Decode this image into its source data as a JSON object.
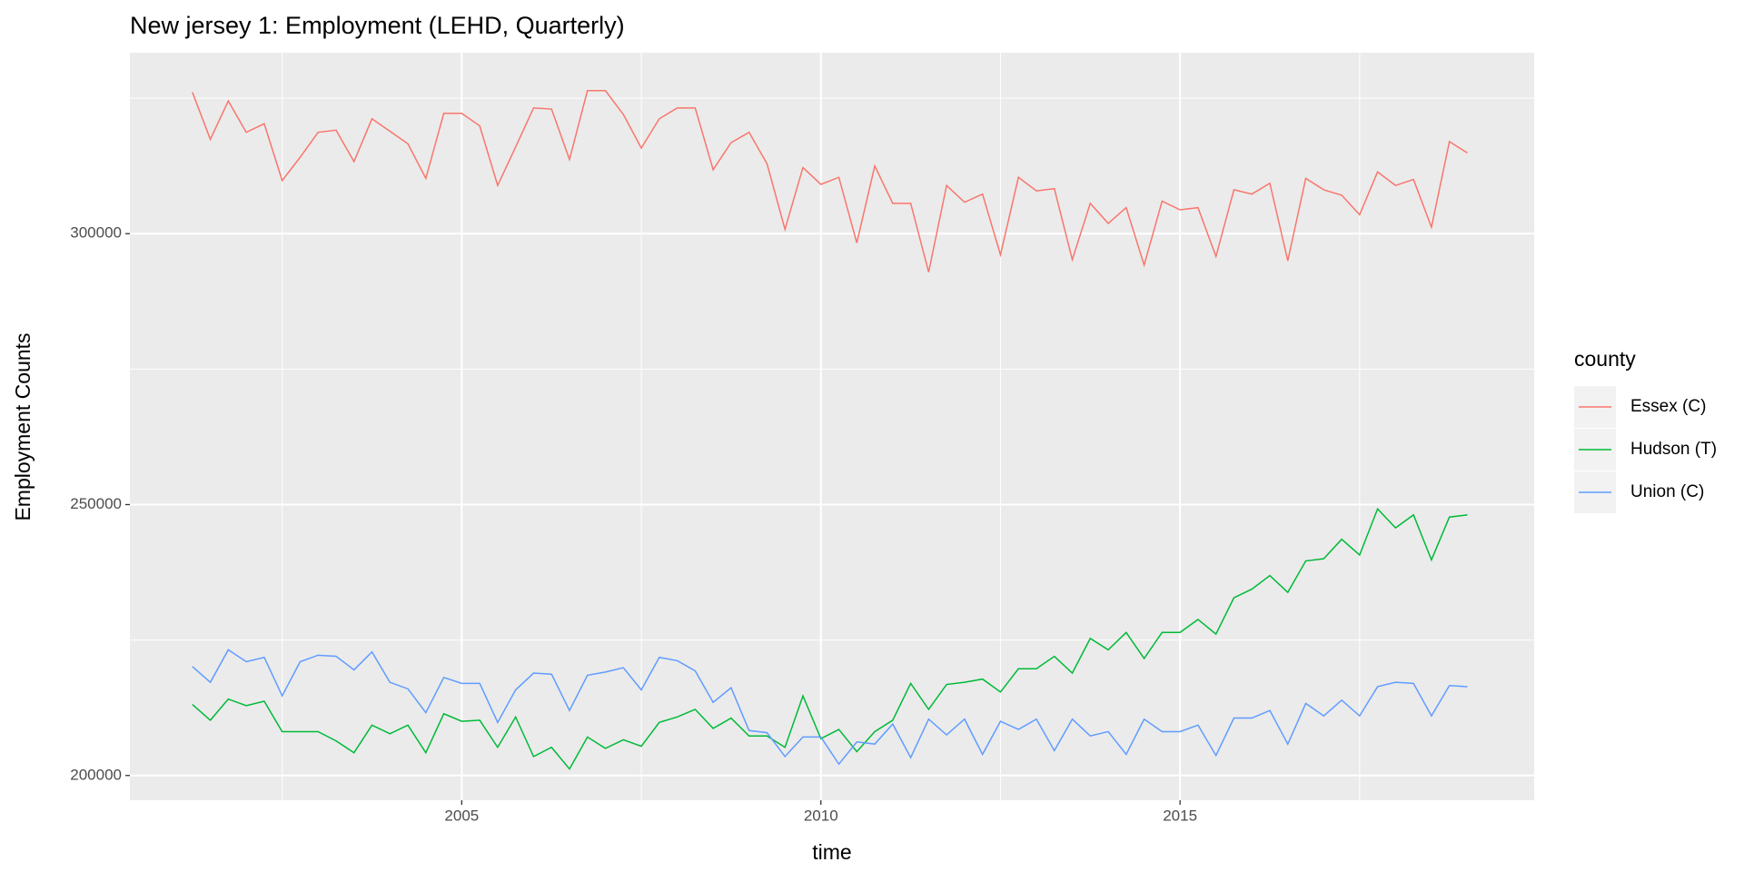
{
  "chart_data": {
    "type": "line",
    "title": "New jersey 1: Employment (LEHD, Quarterly)",
    "x_label": "time",
    "y_label": "Employment Counts",
    "legend_title": "county",
    "legend_position": "right",
    "grid": true,
    "x": [
      2001.25,
      2001.5,
      2001.75,
      2002,
      2002.25,
      2002.5,
      2002.75,
      2003,
      2003.25,
      2003.5,
      2003.75,
      2004,
      2004.25,
      2004.5,
      2004.75,
      2005,
      2005.25,
      2005.5,
      2005.75,
      2006,
      2006.25,
      2006.5,
      2006.75,
      2007,
      2007.25,
      2007.5,
      2007.75,
      2008,
      2008.25,
      2008.5,
      2008.75,
      2009,
      2009.25,
      2009.5,
      2009.75,
      2010,
      2010.25,
      2010.5,
      2010.75,
      2011,
      2011.25,
      2011.5,
      2011.75,
      2012,
      2012.25,
      2012.5,
      2012.75,
      2013,
      2013.25,
      2013.5,
      2013.75,
      2014,
      2014.25,
      2014.5,
      2014.75,
      2015,
      2015.25,
      2015.5,
      2015.75,
      2016,
      2016.25,
      2016.5,
      2016.75,
      2017,
      2017.25,
      2017.5,
      2017.75,
      2018,
      2018.25,
      2018.5,
      2018.75,
      2019
    ],
    "xlim": [
      2000.38,
      2019.93
    ],
    "xticks": [
      2005,
      2010,
      2015
    ],
    "ylim": [
      195435,
      333400
    ],
    "yticks": [
      200000,
      250000,
      300000
    ],
    "series": [
      {
        "name": "Essex (C)",
        "color": "#F8766D",
        "values": [
          326100,
          317400,
          324500,
          318700,
          320300,
          309800,
          314100,
          318700,
          319100,
          313300,
          321200,
          318900,
          316600,
          310200,
          322200,
          322200,
          319900,
          308900,
          316000,
          323200,
          323000,
          313700,
          326400,
          326400,
          322000,
          315800,
          321200,
          323200,
          323200,
          311800,
          316800,
          318700,
          312900,
          300800,
          312200,
          309100,
          310400,
          298300,
          312500,
          305600,
          305600,
          292900,
          308900,
          305800,
          307300,
          296100,
          310400,
          307900,
          308300,
          295200,
          305600,
          301900,
          304800,
          294200,
          306000,
          304400,
          304800,
          295800,
          308100,
          307300,
          309300,
          295000,
          310200,
          308100,
          307100,
          303500,
          311400,
          308900,
          310000,
          301200,
          317000,
          314900
        ]
      },
      {
        "name": "Hudson (T)",
        "color": "#00BA38",
        "values": [
          213100,
          210200,
          214100,
          212900,
          213700,
          208100,
          208100,
          208100,
          206400,
          204200,
          209300,
          207700,
          209300,
          204200,
          211400,
          210000,
          210200,
          205200,
          210800,
          203500,
          205200,
          201200,
          207100,
          205000,
          206600,
          205400,
          209800,
          210800,
          212200,
          208700,
          210600,
          207300,
          207300,
          205200,
          214700,
          206800,
          208500,
          204400,
          208100,
          210200,
          217000,
          212200,
          216800,
          217200,
          217800,
          215400,
          219700,
          219700,
          222000,
          218900,
          225300,
          223200,
          226400,
          221600,
          226400,
          226400,
          228800,
          226100,
          232800,
          234400,
          236900,
          233800,
          239600,
          240000,
          243600,
          240700,
          249200,
          245700,
          248100,
          239800,
          247700,
          248100
        ]
      },
      {
        "name": "Union (C)",
        "color": "#619CFF",
        "values": [
          220100,
          217200,
          223200,
          221000,
          221800,
          214700,
          221000,
          222200,
          222000,
          219500,
          222800,
          217200,
          216000,
          211600,
          218100,
          217000,
          217000,
          209800,
          215800,
          218900,
          218700,
          212000,
          218500,
          219100,
          219900,
          215800,
          221800,
          221200,
          219300,
          213500,
          216200,
          208300,
          207900,
          203500,
          207100,
          207100,
          202100,
          206200,
          205800,
          209500,
          203300,
          210400,
          207500,
          210400,
          203900,
          210000,
          208500,
          210400,
          204600,
          210400,
          207300,
          208100,
          203900,
          210400,
          208100,
          208100,
          209300,
          203700,
          210600,
          210600,
          212000,
          205800,
          213300,
          211000,
          213900,
          211000,
          216400,
          217200,
          217000,
          211000,
          216600,
          216400
        ]
      }
    ]
  }
}
